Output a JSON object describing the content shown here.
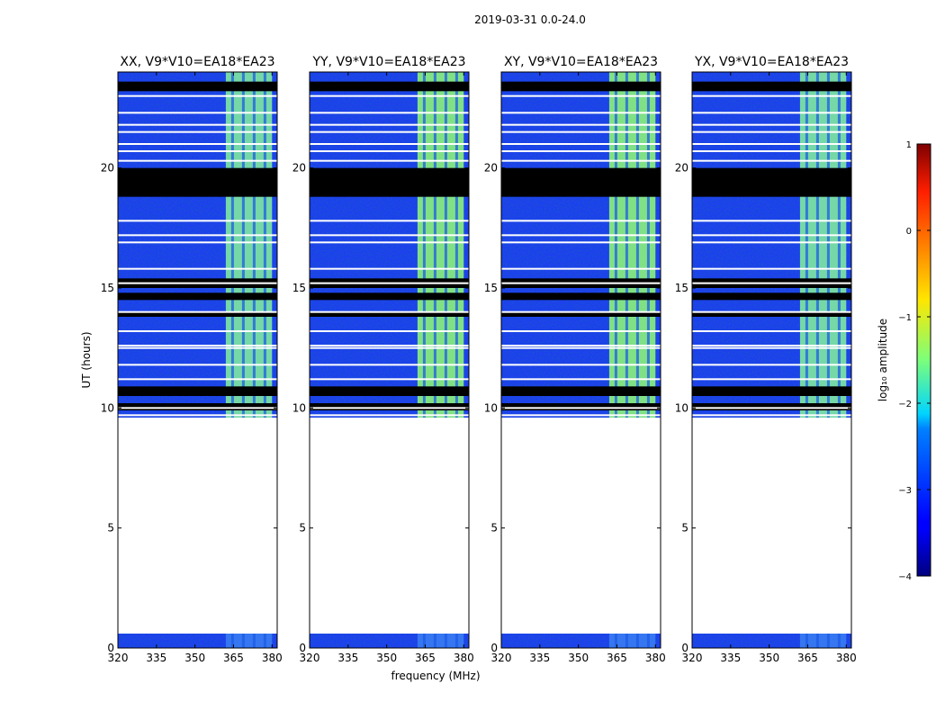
{
  "suptitle": "2019-03-31 0.0-24.0",
  "chart_data": {
    "type": "heatmap",
    "suptitle": "2019-03-31 0.0-24.0",
    "xlabel": "frequency (MHz)",
    "ylabel": "UT (hours)",
    "xlim": [
      320,
      382
    ],
    "ylim": [
      0,
      24
    ],
    "xticks": [
      320,
      335,
      350,
      365,
      380
    ],
    "yticks": [
      0,
      5,
      10,
      15,
      20
    ],
    "panels": [
      {
        "title": "XX, V9*V10=EA18*EA23",
        "polarization": "XX"
      },
      {
        "title": "YY, V9*V10=EA18*EA23",
        "polarization": "YY"
      },
      {
        "title": "XY, V9*V10=EA18*EA23",
        "polarization": "XY"
      },
      {
        "title": "YX, V9*V10=EA18*EA23",
        "polarization": "YX"
      }
    ],
    "data_intervals_hours": [
      [
        0.0,
        0.6
      ],
      [
        9.6,
        24.0
      ]
    ],
    "flagged_black_bands_hours": [
      [
        18.8,
        20.0
      ],
      [
        15.0,
        15.4
      ],
      [
        14.5,
        14.8
      ],
      [
        13.8,
        14.0
      ],
      [
        10.5,
        10.9
      ],
      [
        9.9,
        10.2
      ],
      [
        23.2,
        23.6
      ]
    ],
    "white_gap_lines_hours": [
      23.0,
      22.3,
      21.8,
      21.5,
      21.0,
      20.7,
      20.3,
      17.8,
      17.2,
      16.9,
      15.8,
      15.2,
      14.0,
      13.2,
      12.6,
      12.5,
      11.8,
      11.2,
      10.0,
      9.7
    ],
    "rfi_band_mhz": [
      362,
      380
    ],
    "colorbar": {
      "label": "log₁₀ amplitude",
      "range": [
        -4,
        1
      ],
      "ticks": [
        "1",
        "0",
        "−1",
        "−2",
        "−3",
        "−4"
      ],
      "colormap": "jet"
    }
  }
}
